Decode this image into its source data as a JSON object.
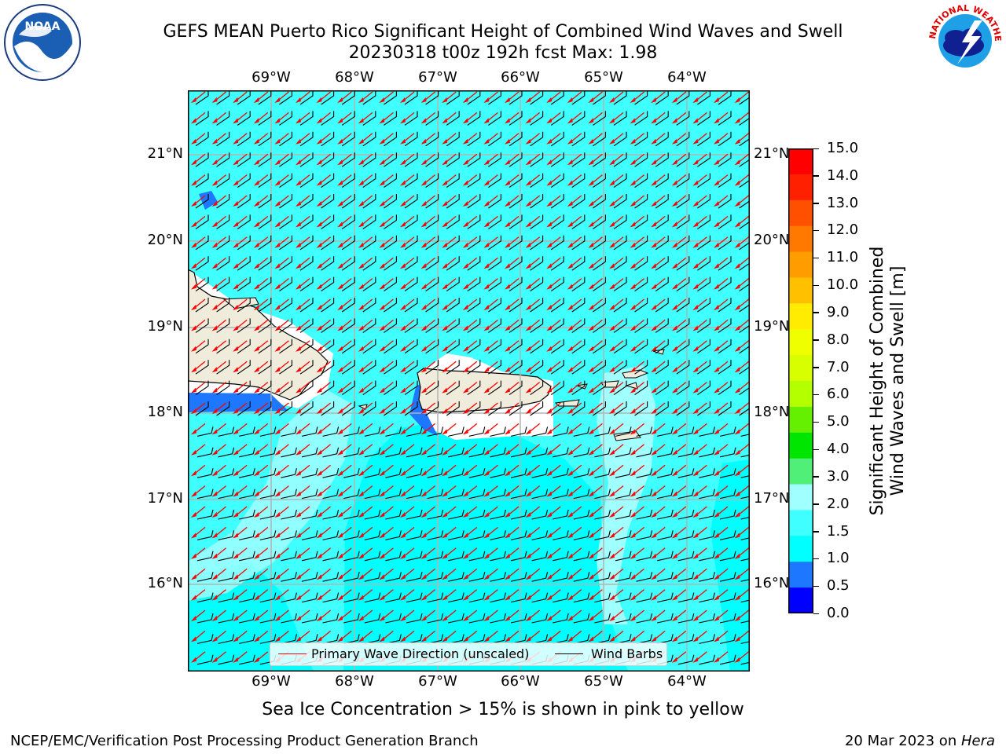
{
  "header": {
    "title_line1": "GEFS MEAN Puerto Rico Significant Height of Combined Wind Waves and Swell",
    "title_line2": "20230318 t00z 192h fcst   Max: 1.98"
  },
  "logos": {
    "noaa_left": {
      "icon": "noaa-logo-icon",
      "text": "NOAA"
    },
    "nws_right": {
      "icon": "nws-logo-icon",
      "text": "NATIONAL WEATHER SERVICE"
    }
  },
  "map": {
    "lon_labels": [
      "69°W",
      "68°W",
      "67°W",
      "66°W",
      "65°W",
      "64°W"
    ],
    "lat_labels": [
      "21°N",
      "20°N",
      "19°N",
      "18°N",
      "17°N",
      "16°N"
    ],
    "legend": {
      "wave": "Primary Wave Direction (unscaled)",
      "barb": "Wind Barbs"
    },
    "colors": {
      "ocean": "#00ffff",
      "band_1_5_2": "#40ffff",
      "band_2_3": "#a0ffff",
      "band_0_5_1": "#1e78ff",
      "land": "#efecdc",
      "wave_arrow": "#ff0000",
      "barb": "#000000",
      "grid": "#b4b4b4"
    }
  },
  "colorbar": {
    "ticks": [
      "15.0",
      "14.0",
      "13.0",
      "12.0",
      "11.0",
      "10.0",
      "9.0",
      "8.0",
      "7.0",
      "6.0",
      "5.0",
      "4.0",
      "3.0",
      "2.0",
      "1.5",
      "1.0",
      "0.5",
      "0.0"
    ],
    "colors": [
      "#ff0000",
      "#ff2000",
      "#ff5000",
      "#ff7800",
      "#ff9c00",
      "#ffc000",
      "#ffec00",
      "#f0ff00",
      "#d8ff00",
      "#b4ff00",
      "#64f000",
      "#00e600",
      "#50f078",
      "#a0ffff",
      "#40ffff",
      "#00ffff",
      "#1e78ff",
      "#0000ff"
    ],
    "label": "Significant Height of Combined Wind Waves and Swell [m]",
    "label_line1": "Significant Height of Combined",
    "label_line2": "Wind Waves and Swell [m]"
  },
  "sea_ice_note": "Sea Ice Concentration > 15% is shown in pink to yellow",
  "footer": {
    "left": "NCEP/EMC/Verification Post Processing Product Generation Branch",
    "right_date": "20 Mar 2023 on ",
    "right_host": "Hera"
  }
}
